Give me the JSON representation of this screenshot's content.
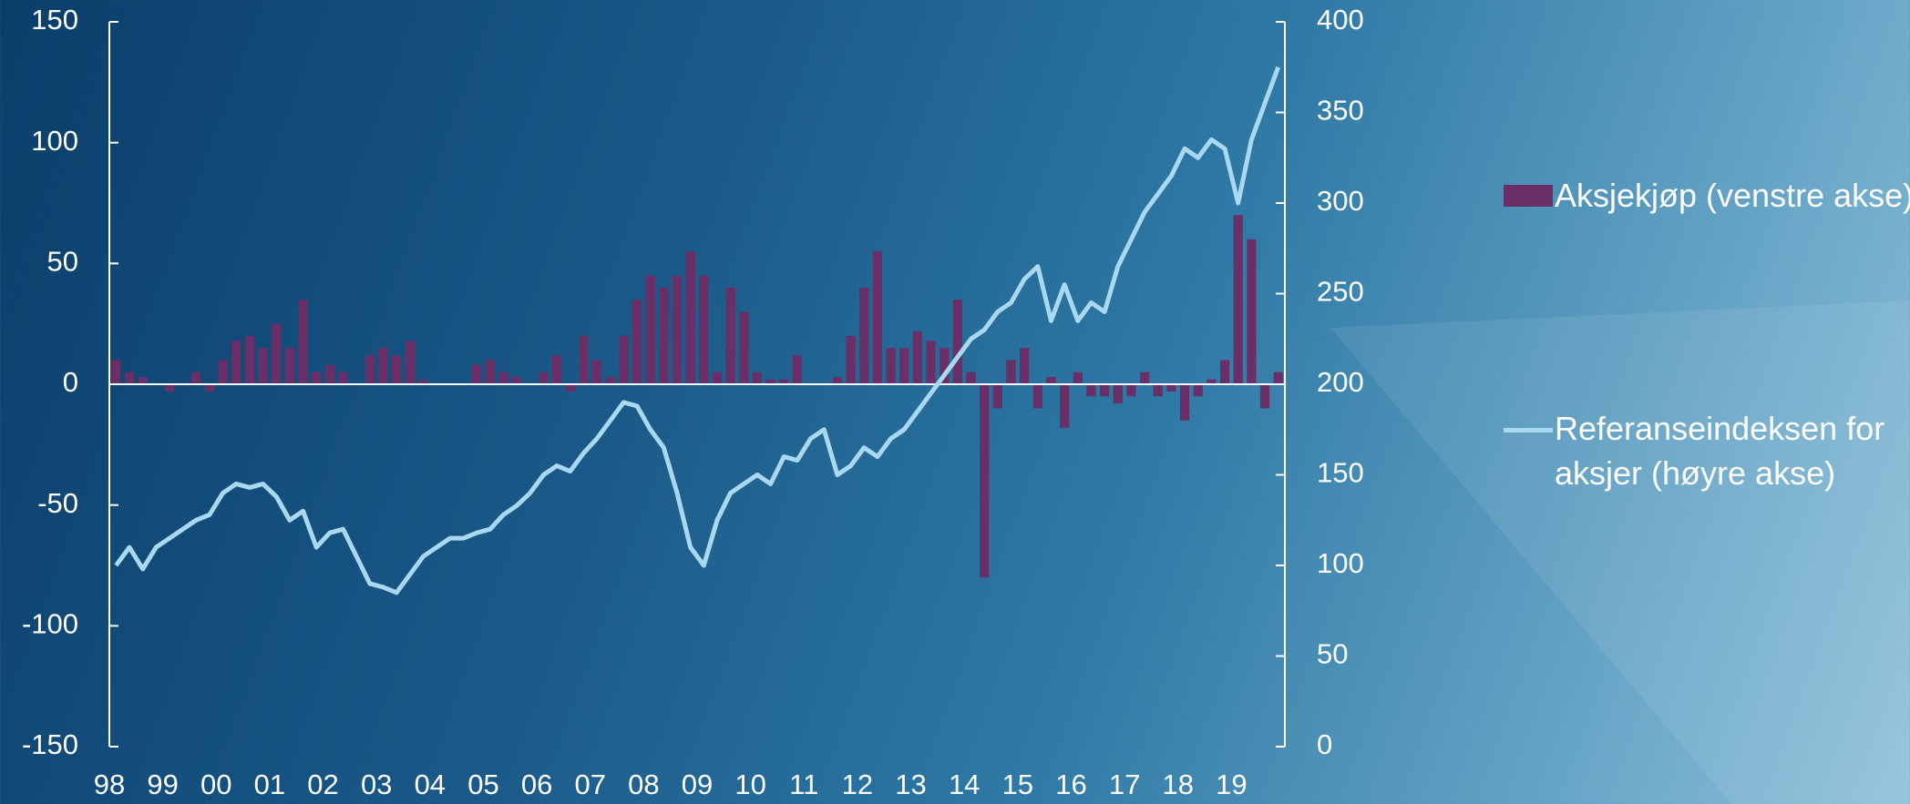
{
  "chart_data": {
    "type": "bar_line",
    "categories": [
      "98",
      null,
      null,
      null,
      "99",
      null,
      null,
      null,
      "00",
      null,
      null,
      null,
      "01",
      null,
      null,
      null,
      "02",
      null,
      null,
      null,
      "03",
      null,
      null,
      null,
      "04",
      null,
      null,
      null,
      "05",
      null,
      null,
      null,
      "06",
      null,
      null,
      null,
      "07",
      null,
      null,
      null,
      "08",
      null,
      null,
      null,
      "09",
      null,
      null,
      null,
      "10",
      null,
      null,
      null,
      "11",
      null,
      null,
      null,
      "12",
      null,
      null,
      null,
      "13",
      null,
      null,
      null,
      "14",
      null,
      null,
      null,
      "15",
      null,
      null,
      null,
      "16",
      null,
      null,
      null,
      "17",
      null,
      null,
      null,
      "18",
      null,
      null,
      null,
      "19",
      null,
      null,
      null
    ],
    "series": [
      {
        "name": "Aksjekjøp (venstre akse)",
        "color": "#6a2f66",
        "type": "bar",
        "values": [
          10,
          5,
          3,
          0,
          -3,
          0,
          5,
          -3,
          10,
          18,
          20,
          15,
          25,
          15,
          35,
          5,
          8,
          5,
          0,
          12,
          15,
          12,
          18,
          2,
          0,
          0,
          0,
          8,
          10,
          5,
          3,
          0,
          5,
          12,
          -3,
          20,
          10,
          3,
          20,
          35,
          45,
          40,
          45,
          55,
          45,
          5,
          40,
          30,
          5,
          2,
          2,
          12,
          0,
          0,
          3,
          20,
          40,
          55,
          15,
          15,
          22,
          18,
          15,
          35,
          5,
          -80,
          -10,
          10,
          15,
          -10,
          3,
          -18,
          5,
          -5,
          -5,
          -8,
          -5,
          5,
          -5,
          -3,
          -15,
          -5,
          2,
          10,
          70,
          60,
          -10,
          5
        ]
      },
      {
        "name": "Referanseindeksen for aksjer (høyre akse)",
        "color": "#a9d8f0",
        "type": "line",
        "axis": "y2",
        "values": [
          100,
          110,
          98,
          110,
          115,
          120,
          125,
          128,
          140,
          145,
          143,
          145,
          138,
          125,
          130,
          110,
          118,
          120,
          105,
          90,
          88,
          85,
          95,
          105,
          110,
          115,
          115,
          118,
          120,
          128,
          133,
          140,
          150,
          155,
          152,
          162,
          170,
          180,
          190,
          188,
          175,
          165,
          140,
          110,
          100,
          125,
          140,
          145,
          150,
          145,
          160,
          158,
          170,
          175,
          150,
          155,
          165,
          160,
          170,
          175,
          185,
          195,
          205,
          215,
          225,
          230,
          240,
          245,
          258,
          265,
          235,
          255,
          235,
          245,
          240,
          265,
          280,
          295,
          305,
          315,
          330,
          325,
          335,
          330,
          300,
          335,
          355,
          375
        ]
      }
    ],
    "ylim": [
      -150,
      150
    ],
    "yticks": [
      -150,
      -100,
      -50,
      0,
      50,
      100,
      150
    ],
    "y2lim": [
      0,
      400
    ],
    "y2ticks": [
      0,
      50,
      100,
      150,
      200,
      250,
      300,
      350,
      400
    ]
  }
}
